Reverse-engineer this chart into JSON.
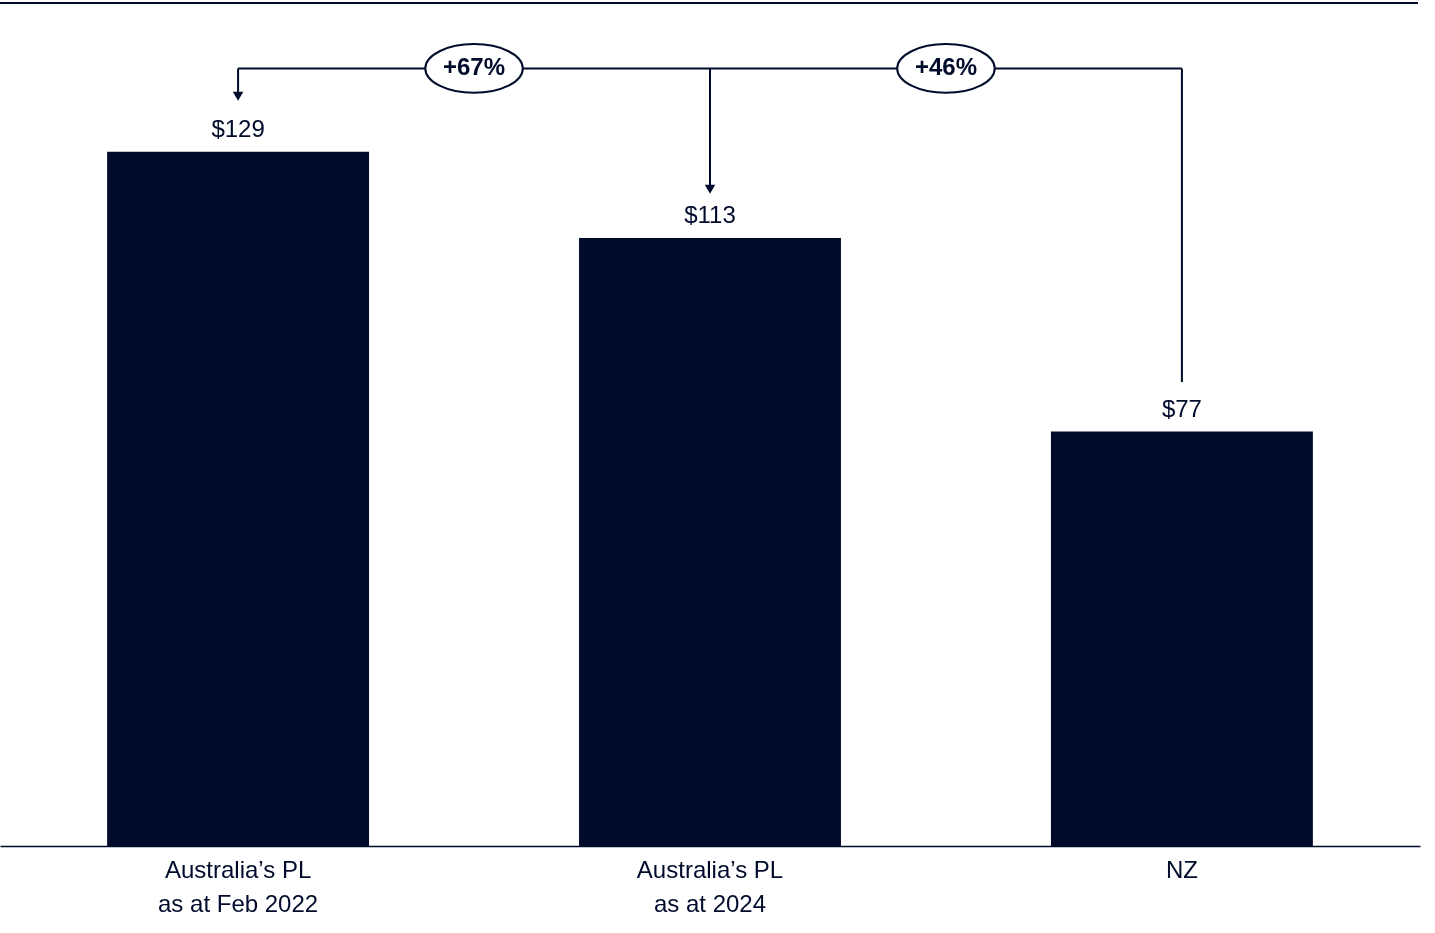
{
  "chart_data": {
    "type": "bar",
    "categories": [
      "Australia’s PL\nas at Feb 2022",
      "Australia’s PL\nas at 2024",
      "NZ"
    ],
    "values": [
      129,
      113,
      77
    ],
    "value_labels": [
      "$129",
      "$113",
      "$77"
    ],
    "color": "#000b2b",
    "annotations": [
      "+67%",
      "+46%"
    ],
    "grid": false
  }
}
